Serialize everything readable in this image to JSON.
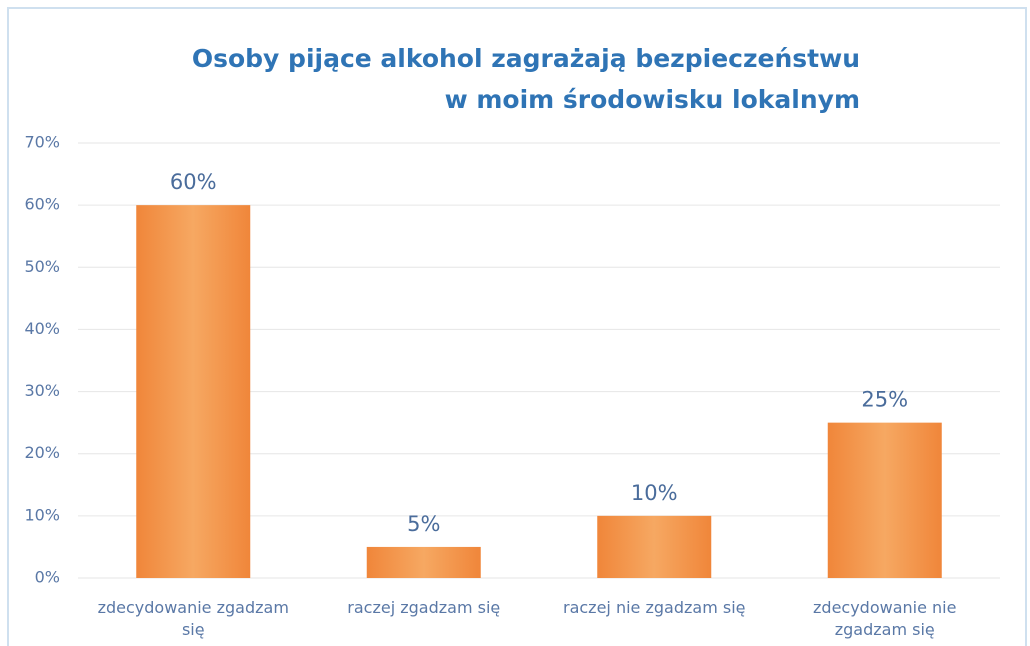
{
  "chart_data": {
    "type": "bar",
    "title": [
      "Osoby pijące alkohol zagrażają bezpieczeństwu",
      "w moim środowisku lokalnym"
    ],
    "categories": [
      "zdecydowanie zgadzam się",
      "raczej zgadzam się",
      "raczej nie zgadzam się",
      "zdecydowanie nie zgadzam się"
    ],
    "values": [
      60,
      5,
      10,
      25
    ],
    "value_labels": [
      "60%",
      "5%",
      "10%",
      "25%"
    ],
    "color": "#f39a4e",
    "ylim": [
      0,
      70
    ],
    "yticks": [
      {
        "value": 0,
        "label": "0%"
      },
      {
        "value": 10,
        "label": "10%"
      },
      {
        "value": 20,
        "label": "20%"
      },
      {
        "value": 30,
        "label": "30%"
      },
      {
        "value": 40,
        "label": "40%"
      },
      {
        "value": 50,
        "label": "50%"
      },
      {
        "value": 60,
        "label": "60%"
      },
      {
        "value": 70,
        "label": "70%"
      }
    ],
    "grid": true
  }
}
